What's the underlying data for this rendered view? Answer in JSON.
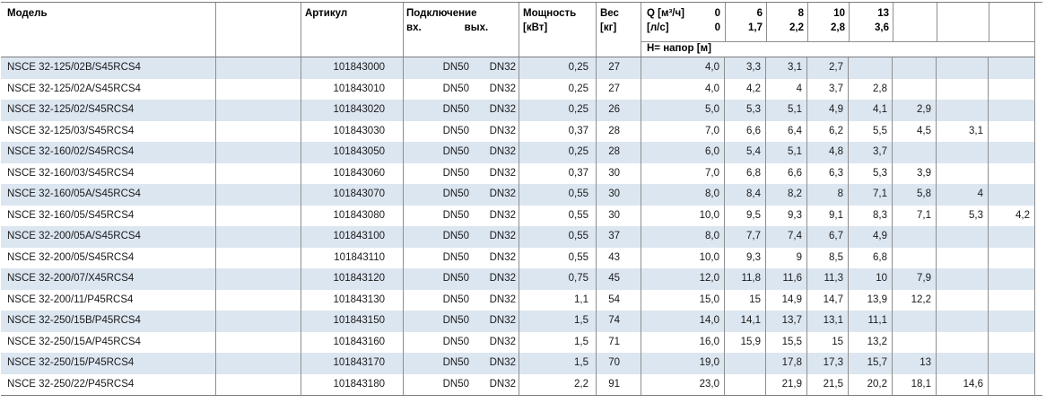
{
  "header": {
    "model": "Модель",
    "article": "Артикул",
    "connection": "Подключение",
    "inlet": "вх.",
    "outlet": "вых.",
    "power": "Мощность",
    "power_unit": "[кВт]",
    "weight": "Вес",
    "weight_unit": "[кг]",
    "q_label": "Q [м³/ч]",
    "q_zero": "0",
    "ls_label": "[л/с]",
    "ls_zero": "0",
    "head_label": "Н= напор [м]",
    "flow_cols": [
      {
        "m3h": "6",
        "ls": "1,7"
      },
      {
        "m3h": "8",
        "ls": "2,2"
      },
      {
        "m3h": "10",
        "ls": "2,8"
      },
      {
        "m3h": "13",
        "ls": "3,6"
      },
      {
        "m3h": "",
        "ls": ""
      },
      {
        "m3h": "",
        "ls": ""
      },
      {
        "m3h": "",
        "ls": ""
      }
    ]
  },
  "colors": {
    "row_alt": "#dce6f1",
    "border_v": "#8e8e8e",
    "border_h": "#7b7b7b"
  },
  "rows": [
    {
      "model": "NSCE 32-125/02B/S45RCS4",
      "article": "101843000",
      "inlet": "DN50",
      "outlet": "DN32",
      "power": "0,25",
      "weight": "27",
      "heads": [
        "4,0",
        "3,3",
        "3,1",
        "2,7",
        "",
        "",
        "",
        ""
      ]
    },
    {
      "model": "NSCE 32-125/02A/S45RCS4",
      "article": "101843010",
      "inlet": "DN50",
      "outlet": "DN32",
      "power": "0,25",
      "weight": "27",
      "heads": [
        "4,0",
        "4,2",
        "4",
        "3,7",
        "2,8",
        "",
        "",
        ""
      ]
    },
    {
      "model": "NSCE 32-125/02/S45RCS4",
      "article": "101843020",
      "inlet": "DN50",
      "outlet": "DN32",
      "power": "0,25",
      "weight": "26",
      "heads": [
        "5,0",
        "5,3",
        "5,1",
        "4,9",
        "4,1",
        "2,9",
        "",
        ""
      ]
    },
    {
      "model": "NSCE 32-125/03/S45RCS4",
      "article": "101843030",
      "inlet": "DN50",
      "outlet": "DN32",
      "power": "0,37",
      "weight": "28",
      "heads": [
        "7,0",
        "6,6",
        "6,4",
        "6,2",
        "5,5",
        "4,5",
        "3,1",
        ""
      ]
    },
    {
      "model": "NSCE 32-160/02/S45RCS4",
      "article": "101843050",
      "inlet": "DN50",
      "outlet": "DN32",
      "power": "0,25",
      "weight": "28",
      "heads": [
        "6,0",
        "5,4",
        "5,1",
        "4,8",
        "3,7",
        "",
        "",
        ""
      ]
    },
    {
      "model": "NSCE 32-160/03/S45RCS4",
      "article": "101843060",
      "inlet": "DN50",
      "outlet": "DN32",
      "power": "0,37",
      "weight": "30",
      "heads": [
        "7,0",
        "6,8",
        "6,6",
        "6,3",
        "5,3",
        "3,9",
        "",
        ""
      ]
    },
    {
      "model": "NSCE 32-160/05A/S45RCS4",
      "article": "101843070",
      "inlet": "DN50",
      "outlet": "DN32",
      "power": "0,55",
      "weight": "30",
      "heads": [
        "8,0",
        "8,4",
        "8,2",
        "8",
        "7,1",
        "5,8",
        "4",
        ""
      ]
    },
    {
      "model": "NSCE 32-160/05/S45RCS4",
      "article": "101843080",
      "inlet": "DN50",
      "outlet": "DN32",
      "power": "0,55",
      "weight": "30",
      "heads": [
        "10,0",
        "9,5",
        "9,3",
        "9,1",
        "8,3",
        "7,1",
        "5,3",
        "4,2"
      ]
    },
    {
      "model": "NSCE 32-200/05A/S45RCS4",
      "article": "101843100",
      "inlet": "DN50",
      "outlet": "DN32",
      "power": "0,55",
      "weight": "37",
      "heads": [
        "8,0",
        "7,7",
        "7,4",
        "6,7",
        "4,9",
        "",
        "",
        ""
      ]
    },
    {
      "model": "NSCE 32-200/05/S45RCS4",
      "article": "101843110",
      "inlet": "DN50",
      "outlet": "DN32",
      "power": "0,55",
      "weight": "43",
      "heads": [
        "10,0",
        "9,3",
        "9",
        "8,5",
        "6,8",
        "",
        "",
        ""
      ]
    },
    {
      "model": "NSCE 32-200/07/X45RCS4",
      "article": "101843120",
      "inlet": "DN50",
      "outlet": "DN32",
      "power": "0,75",
      "weight": "45",
      "heads": [
        "12,0",
        "11,8",
        "11,6",
        "11,3",
        "10",
        "7,9",
        "",
        ""
      ]
    },
    {
      "model": "NSCE 32-200/11/P45RCS4",
      "article": "101843130",
      "inlet": "DN50",
      "outlet": "DN32",
      "power": "1,1",
      "weight": "54",
      "heads": [
        "15,0",
        "15",
        "14,9",
        "14,7",
        "13,9",
        "12,2",
        "",
        ""
      ]
    },
    {
      "model": "NSCE 32-250/15B/P45RCS4",
      "article": "101843150",
      "inlet": "DN50",
      "outlet": "DN32",
      "power": "1,5",
      "weight": "74",
      "heads": [
        "14,0",
        "14,1",
        "13,7",
        "13,1",
        "11,1",
        "",
        "",
        ""
      ]
    },
    {
      "model": "NSCE 32-250/15A/P45RCS4",
      "article": "101843160",
      "inlet": "DN50",
      "outlet": "DN32",
      "power": "1,5",
      "weight": "71",
      "heads": [
        "16,0",
        "15,9",
        "15,5",
        "15",
        "13,2",
        "",
        "",
        ""
      ]
    },
    {
      "model": "NSCE 32-250/15/P45RCS4",
      "article": "101843170",
      "inlet": "DN50",
      "outlet": "DN32",
      "power": "1,5",
      "weight": "70",
      "heads": [
        "19,0",
        "",
        "17,8",
        "17,3",
        "15,7",
        "13",
        "",
        ""
      ]
    },
    {
      "model": "NSCE 32-250/22/P45RCS4",
      "article": "101843180",
      "inlet": "DN50",
      "outlet": "DN32",
      "power": "2,2",
      "weight": "91",
      "heads": [
        "23,0",
        "",
        "21,9",
        "21,5",
        "20,2",
        "18,1",
        "14,6",
        ""
      ]
    }
  ]
}
